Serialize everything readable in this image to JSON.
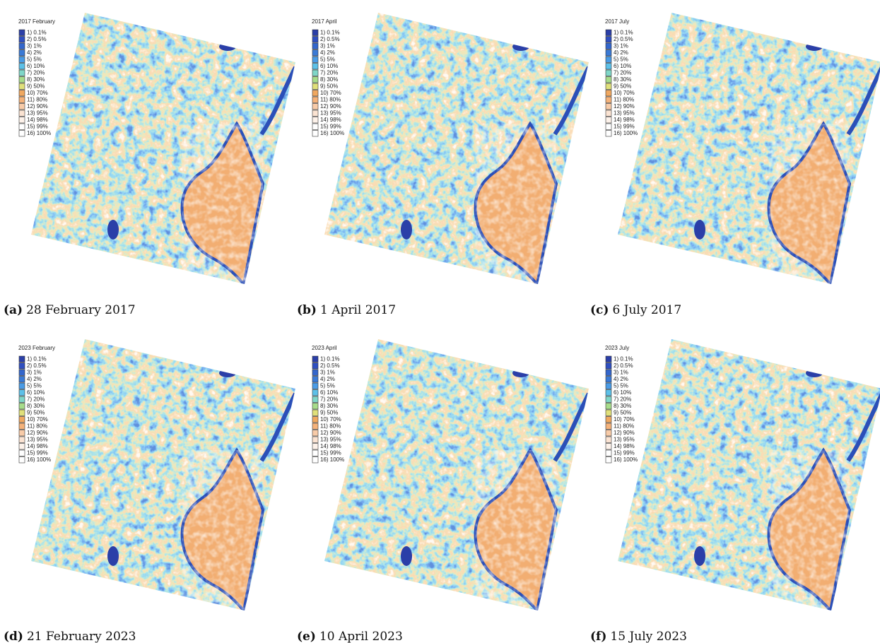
{
  "panels": [
    {
      "title": "2017 February",
      "label": "(a)",
      "caption": "28 February 2017"
    },
    {
      "title": "2017 April",
      "label": "(b)",
      "caption": "1 April 2017"
    },
    {
      "title": "2017 July",
      "label": "(c)",
      "caption": "6 July 2017"
    },
    {
      "title": "2023 February",
      "label": "(d)",
      "caption": "21 February 2023"
    },
    {
      "title": "2023 April",
      "label": "(e)",
      "caption": "10 April 2023"
    },
    {
      "title": "2023 July",
      "label": "(f)",
      "caption": "15 July 2023"
    }
  ],
  "legend": [
    {
      "label": "1) 0.1%",
      "color": "#2b3fa8"
    },
    {
      "label": "2) 0.5%",
      "color": "#2f4fc0"
    },
    {
      "label": "3) 1%",
      "color": "#3366cc"
    },
    {
      "label": "4) 2%",
      "color": "#3a7ad6"
    },
    {
      "label": "5) 5%",
      "color": "#4a9be6"
    },
    {
      "label": "6) 10%",
      "color": "#5cc0e8"
    },
    {
      "label": "7) 20%",
      "color": "#7fd6c8"
    },
    {
      "label": "8) 30%",
      "color": "#a7dc8a"
    },
    {
      "label": "9) 50%",
      "color": "#e0e07a"
    },
    {
      "label": "10) 70%",
      "color": "#f0a860"
    },
    {
      "label": "11) 80%",
      "color": "#f5b27a"
    },
    {
      "label": "12) 90%",
      "color": "#f8cba8"
    },
    {
      "label": "13) 95%",
      "color": "#fbe3d2"
    },
    {
      "label": "14) 98%",
      "color": "#fdf2ea"
    },
    {
      "label": "15) 99%",
      "color": "#ffffff"
    },
    {
      "label": "16) 100%",
      "color": "#ffffff"
    }
  ]
}
